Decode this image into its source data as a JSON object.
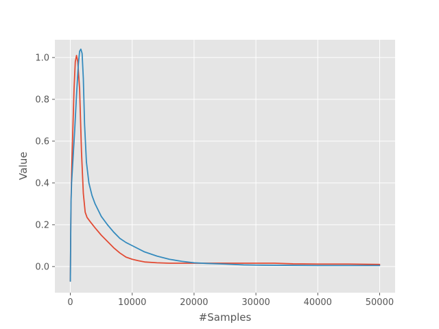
{
  "chart_data": {
    "type": "line",
    "title": "",
    "xlabel": "#Samples",
    "ylabel": "Value",
    "xlim": [
      -2500,
      52500
    ],
    "ylim": [
      -0.125,
      1.085
    ],
    "xticks": [
      0,
      10000,
      20000,
      30000,
      40000,
      50000
    ],
    "xtick_labels": [
      "0",
      "10000",
      "20000",
      "30000",
      "40000",
      "50000"
    ],
    "yticks": [
      0.0,
      0.2,
      0.4,
      0.6,
      0.8,
      1.0
    ],
    "ytick_labels": [
      "0.0",
      "0.2",
      "0.4",
      "0.6",
      "0.8",
      "1.0"
    ],
    "grid": true,
    "background": "#e5e5e5",
    "series": [
      {
        "color": "#e24a33",
        "x": [
          0,
          100,
          200,
          400,
          600,
          800,
          1000,
          1200,
          1500,
          1800,
          2100,
          2400,
          2700,
          3200,
          4000,
          5000,
          6000,
          7000,
          8000,
          9000,
          10000,
          11000,
          12000,
          14000,
          16000,
          18000,
          20000,
          22000,
          25000,
          30000,
          33000,
          36000,
          40000,
          45000,
          50000
        ],
        "y": [
          -0.07,
          0.3,
          0.45,
          0.65,
          0.85,
          0.98,
          1.01,
          0.98,
          0.85,
          0.55,
          0.35,
          0.26,
          0.235,
          0.215,
          0.185,
          0.15,
          0.12,
          0.09,
          0.065,
          0.045,
          0.035,
          0.028,
          0.022,
          0.018,
          0.016,
          0.016,
          0.016,
          0.016,
          0.016,
          0.016,
          0.016,
          0.013,
          0.012,
          0.012,
          0.01
        ]
      },
      {
        "color": "#348abd",
        "x": [
          0,
          100,
          200,
          400,
          700,
          1000,
          1300,
          1500,
          1700,
          1900,
          2100,
          2300,
          2600,
          3000,
          3500,
          4000,
          5000,
          6000,
          7000,
          8000,
          9000,
          10000,
          12000,
          14000,
          16000,
          18000,
          20000,
          22000,
          25000,
          28000,
          30000,
          35000,
          40000,
          45000,
          50000
        ],
        "y": [
          -0.07,
          0.3,
          0.4,
          0.5,
          0.65,
          0.82,
          0.97,
          1.03,
          1.04,
          1.02,
          0.9,
          0.68,
          0.5,
          0.4,
          0.34,
          0.3,
          0.24,
          0.2,
          0.165,
          0.135,
          0.115,
          0.1,
          0.07,
          0.05,
          0.035,
          0.025,
          0.018,
          0.015,
          0.012,
          0.008,
          0.007,
          0.006,
          0.005,
          0.005,
          0.005
        ]
      }
    ]
  }
}
